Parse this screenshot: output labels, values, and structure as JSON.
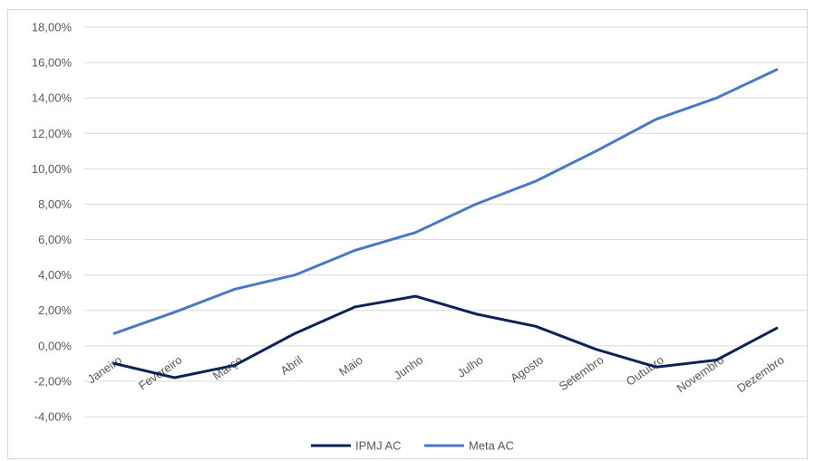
{
  "chart_data": {
    "type": "line",
    "categories": [
      "Janeiro",
      "Fevereiro",
      "Março",
      "Abril",
      "Maio",
      "Junho",
      "Julho",
      "Agosto",
      "Setembro",
      "Outubro",
      "Novembro",
      "Dezembro"
    ],
    "series": [
      {
        "name": "IPMJ AC",
        "color": "#0b2359",
        "values": [
          -1.0,
          -1.8,
          -1.1,
          0.7,
          2.2,
          2.8,
          1.8,
          1.1,
          -0.2,
          -1.2,
          -0.8,
          1.0
        ]
      },
      {
        "name": "Meta AC",
        "color": "#4a78c8",
        "values": [
          0.7,
          1.9,
          3.2,
          4.0,
          5.4,
          6.4,
          8.0,
          9.3,
          11.0,
          12.8,
          14.0,
          15.6
        ]
      }
    ],
    "ylim": [
      -4,
      18
    ],
    "yticks": [
      -4,
      -2,
      0,
      2,
      4,
      6,
      8,
      10,
      12,
      14,
      16,
      18
    ],
    "ytick_labels": [
      "-4,00%",
      "-2,00%",
      "0,00%",
      "2,00%",
      "4,00%",
      "6,00%",
      "8,00%",
      "10,00%",
      "12,00%",
      "14,00%",
      "16,00%",
      "18,00%"
    ],
    "grid": true,
    "legend": "bottom",
    "title": "",
    "xlabel": "",
    "ylabel": ""
  }
}
